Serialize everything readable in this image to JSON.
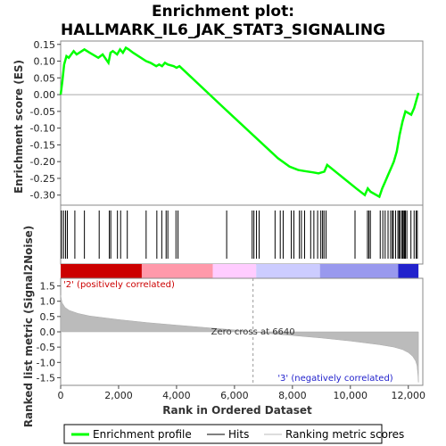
{
  "chart_data": {
    "type": "line",
    "title_line1": "Enrichment plot:",
    "title_line2": "HALLMARK_IL6_JAK_STAT3_SIGNALING",
    "top_panel": {
      "ylabel": "Enrichment score (ES)",
      "ylim": [
        -0.33,
        0.16
      ],
      "yticks": [
        "0.15",
        "0.10",
        "0.05",
        "0.00",
        "-0.05",
        "-0.10",
        "-0.15",
        "-0.20",
        "-0.25",
        "-0.30"
      ],
      "ytick_values": [
        0.15,
        0.1,
        0.05,
        0.0,
        -0.05,
        -0.1,
        -0.15,
        -0.2,
        -0.25,
        -0.3
      ],
      "series": [
        {
          "name": "Enrichment profile",
          "color": "#00ff00",
          "x": [
            0,
            60,
            120,
            200,
            280,
            450,
            550,
            820,
            1000,
            1300,
            1450,
            1650,
            1720,
            1800,
            1950,
            2050,
            2150,
            2250,
            2350,
            2500,
            2950,
            3100,
            3300,
            3400,
            3500,
            3600,
            3700,
            3900,
            4000,
            4100,
            5700,
            7500,
            7900,
            8200,
            8400,
            8700,
            8900,
            9100,
            9200,
            10200,
            10500,
            10600,
            10700,
            11000,
            11100,
            11200,
            11300,
            11400,
            11500,
            11600,
            11700,
            11800,
            11900,
            12100,
            12200,
            12300,
            12350
          ],
          "y": [
            0.0,
            0.04,
            0.09,
            0.115,
            0.11,
            0.13,
            0.12,
            0.135,
            0.125,
            0.11,
            0.12,
            0.095,
            0.125,
            0.13,
            0.12,
            0.135,
            0.125,
            0.14,
            0.135,
            0.125,
            0.1,
            0.095,
            0.085,
            0.09,
            0.085,
            0.095,
            0.09,
            0.085,
            0.08,
            0.085,
            -0.045,
            -0.19,
            -0.215,
            -0.225,
            -0.228,
            -0.232,
            -0.235,
            -0.23,
            -0.21,
            -0.28,
            -0.3,
            -0.28,
            -0.29,
            -0.305,
            -0.28,
            -0.26,
            -0.24,
            -0.22,
            -0.2,
            -0.17,
            -0.12,
            -0.08,
            -0.05,
            -0.06,
            -0.04,
            -0.01,
            0.005
          ]
        }
      ],
      "zero_line": true
    },
    "hits_panel": {
      "hit_positions": [
        30,
        100,
        170,
        230,
        490,
        820,
        1330,
        1680,
        1730,
        1960,
        2070,
        2300,
        2950,
        3320,
        3490,
        3640,
        3700,
        3980,
        4050,
        5730,
        6610,
        6670,
        6760,
        6850,
        7400,
        7580,
        7680,
        7960,
        8050,
        8240,
        8310,
        8420,
        8630,
        8740,
        8870,
        8980,
        9040,
        9090,
        9160,
        10160,
        10590,
        10640,
        10690,
        11030,
        11120,
        11200,
        11300,
        11390,
        11450,
        11480,
        11560,
        11640,
        11680,
        11720,
        11780,
        11800,
        11830,
        11870,
        11900,
        11950,
        12090,
        12200,
        12270,
        12310
      ]
    },
    "gradient_bar": {
      "labels": [
        "'2' (positively correlated)",
        "'3' (negatively correlated)"
      ],
      "colors": [
        "#cc0000",
        "#ff99aa",
        "#ffccff",
        "#ccccff",
        "#9999ee",
        "#2222cc"
      ]
    },
    "bottom_panel": {
      "ylabel": "Ranked list metric (Signal2Noise)",
      "xlabel": "Rank in Ordered Dataset",
      "ylim": [
        -1.75,
        1.75
      ],
      "yticks": [
        "1.5",
        "1.0",
        "0.5",
        "0.0",
        "-0.5",
        "-1.0",
        "-1.5"
      ],
      "ytick_values": [
        1.5,
        1.0,
        0.5,
        0.0,
        -0.5,
        -1.0,
        -1.5
      ],
      "xlim": [
        0,
        12500
      ],
      "xticks": [
        "0",
        "2,000",
        "4,000",
        "6,000",
        "8,000",
        "10,000",
        "12,000"
      ],
      "xtick_values": [
        0,
        2000,
        4000,
        6000,
        8000,
        10000,
        12000
      ],
      "zero_cross_label": "Zero cross at 6640",
      "zero_cross_value": 6640,
      "metric_curve_x": [
        0,
        50,
        150,
        300,
        600,
        1000,
        2000,
        3000,
        4000,
        5000,
        6000,
        6640,
        7000,
        8000,
        9000,
        10000,
        11000,
        11500,
        11800,
        12000,
        12150,
        12250,
        12300,
        12330,
        12350
      ],
      "metric_curve_y": [
        1.2,
        0.95,
        0.8,
        0.7,
        0.6,
        0.52,
        0.4,
        0.3,
        0.22,
        0.14,
        0.06,
        0.0,
        -0.04,
        -0.12,
        -0.2,
        -0.3,
        -0.42,
        -0.5,
        -0.58,
        -0.68,
        -0.8,
        -0.95,
        -1.1,
        -1.4,
        -1.65
      ]
    },
    "legend": [
      {
        "label": "Enrichment profile",
        "color": "#00ff00"
      },
      {
        "label": "Hits",
        "color": "#000000"
      },
      {
        "label": "Ranking metric scores",
        "color": "#bbbbbb"
      }
    ]
  }
}
